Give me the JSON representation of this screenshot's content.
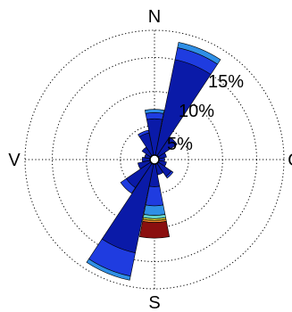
{
  "chart_data": {
    "type": "wind-rose",
    "directions": [
      "N",
      "NNE",
      "NE",
      "ENE",
      "E",
      "ESE",
      "SE",
      "SSE",
      "S",
      "SSW",
      "SW",
      "WSW",
      "W",
      "WNW",
      "NW",
      "NNW"
    ],
    "compass_labels": {
      "north": "N",
      "east": "O",
      "south": "S",
      "west": "V"
    },
    "rings": [
      {
        "value": 5,
        "label": "5%"
      },
      {
        "value": 10,
        "label": "10%"
      },
      {
        "value": 15,
        "label": "15%"
      }
    ],
    "r_max": 19,
    "bins": [
      {
        "color": "#0a1aa8",
        "values": [
          6.0,
          15.0,
          4.0,
          1.8,
          1.5,
          1.8,
          3.0,
          2.3,
          4.0,
          14.0,
          5.0,
          2.5,
          1.8,
          1.5,
          2.2,
          4.0
        ]
      },
      {
        "color": "#1f3ce0",
        "values": [
          0.9,
          1.8,
          0.0,
          0.0,
          0.0,
          0.0,
          0.3,
          0.0,
          2.8,
          3.5,
          1.0,
          0.0,
          0.0,
          0.0,
          0.0,
          0.4
        ]
      },
      {
        "color": "#2f8fe6",
        "values": [
          0.5,
          0.8,
          0.0,
          0.0,
          0.0,
          0.0,
          0.0,
          0.0,
          1.4,
          0.6,
          0.0,
          0.0,
          0.0,
          0.0,
          0.0,
          0.0
        ]
      },
      {
        "color": "#63d2c8",
        "values": [
          0.0,
          0.0,
          0.0,
          0.0,
          0.0,
          0.0,
          0.0,
          0.0,
          0.5,
          0.0,
          0.0,
          0.0,
          0.0,
          0.0,
          0.0,
          0.0
        ]
      },
      {
        "color": "#f2ee3c",
        "values": [
          0.0,
          0.0,
          0.0,
          0.0,
          0.0,
          0.0,
          0.0,
          0.0,
          0.25,
          0.0,
          0.0,
          0.0,
          0.0,
          0.0,
          0.0,
          0.0
        ]
      },
      {
        "color": "#f28a2a",
        "values": [
          0.0,
          0.0,
          0.0,
          0.0,
          0.0,
          0.0,
          0.0,
          0.0,
          0.3,
          0.0,
          0.0,
          0.0,
          0.0,
          0.0,
          0.0,
          0.0
        ]
      },
      {
        "color": "#8a0f0f",
        "values": [
          0.0,
          0.0,
          0.0,
          0.0,
          0.0,
          0.0,
          0.0,
          0.0,
          2.3,
          0.0,
          0.0,
          0.0,
          0.0,
          0.0,
          0.0,
          0.0
        ]
      }
    ],
    "grid": true,
    "legend": "none"
  }
}
